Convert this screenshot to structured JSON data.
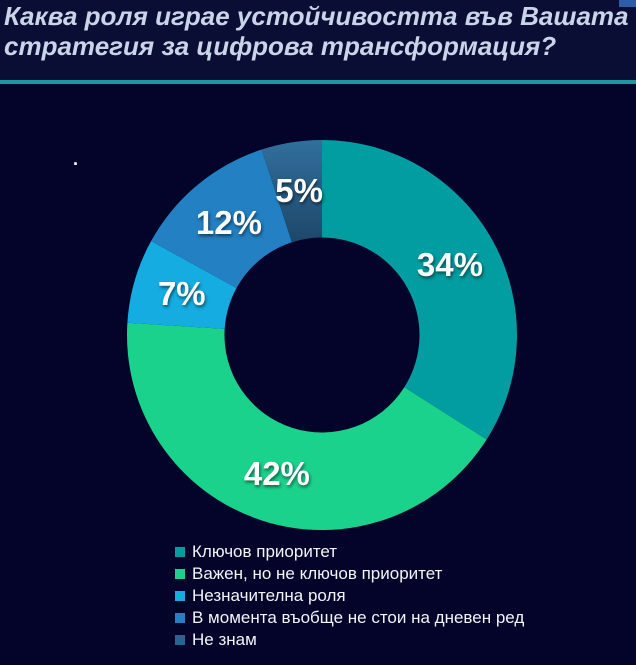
{
  "header": {
    "title": "Каква роля играе устойчивостта във Вашата\nстратегия за цифрова трансформация?"
  },
  "decor": {
    "stray_dot": ".",
    "divider_color": "#1f97a3",
    "corner_accent_color": "#2e5ca5",
    "background_color": "#04042b",
    "header_background_color": "#0b0e34"
  },
  "chart_data": {
    "type": "pie",
    "variant": "donut",
    "title": "Каква роля играе устойчивостта във Вашата стратегия за цифрова трансформация?",
    "categories": [
      "Ключов приоритет",
      "Важен, но не ключов приоритет",
      "Незначителна роля",
      "В момента въобще не стои на дневен ред",
      "Не знам"
    ],
    "values": [
      34,
      42,
      7,
      12,
      5
    ],
    "data_labels": [
      "34%",
      "42%",
      "7%",
      "12%",
      "5%"
    ],
    "colors": [
      "#029da0",
      "#1bd28c",
      "#15ade1",
      "#2280c3",
      "#2b6390"
    ],
    "segment5_gradient": [
      "#33719f",
      "#1c4669"
    ],
    "start_angle_deg": 0,
    "direction": "clockwise",
    "inner_radius_ratio": 0.5,
    "legend_position": "bottom"
  }
}
